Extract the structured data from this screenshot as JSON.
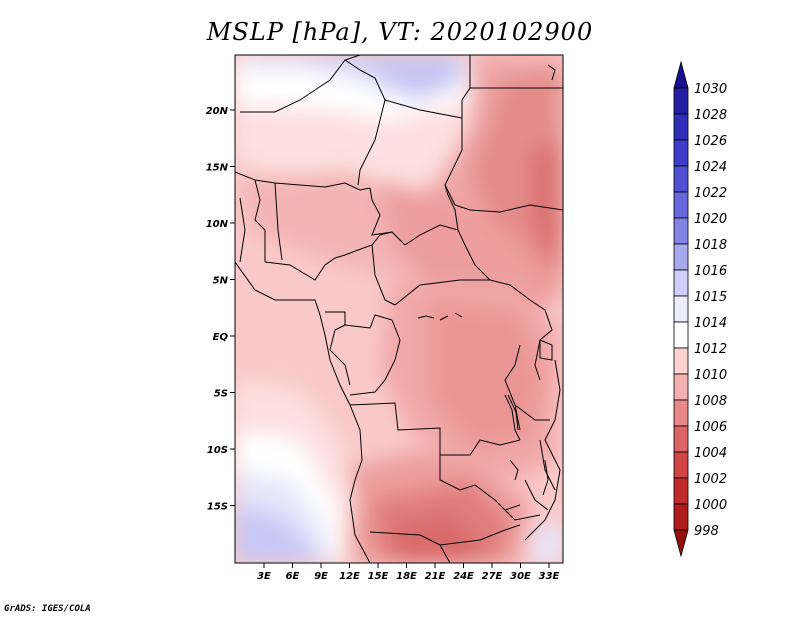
{
  "title": "MSLP [hPa], VT: 2020102900",
  "credit": "GrADS: IGES/COLA",
  "map": {
    "lon_labels": [
      "3E",
      "6E",
      "9E",
      "12E",
      "15E",
      "18E",
      "21E",
      "24E",
      "27E",
      "30E",
      "33E"
    ],
    "lat_labels": [
      "20N",
      "15N",
      "10N",
      "5N",
      "EQ",
      "5S",
      "10S",
      "15S"
    ]
  },
  "colorbar": {
    "labels": [
      "1030",
      "1028",
      "1026",
      "1024",
      "1022",
      "1020",
      "1018",
      "1016",
      "1015",
      "1014",
      "1012",
      "1010",
      "1008",
      "1006",
      "1004",
      "1002",
      "1000",
      "998"
    ],
    "colors": [
      "#1a0f8c",
      "#231ea3",
      "#2e2eb8",
      "#3c3cc8",
      "#5050d4",
      "#6868de",
      "#8484e6",
      "#a8a8ef",
      "#cfcff7",
      "#ececfc",
      "#ffffff",
      "#fbd3d3",
      "#f4b0b0",
      "#e88888",
      "#dc6464",
      "#d04444",
      "#c02c2c",
      "#ae1c1c",
      "#961010"
    ]
  }
}
